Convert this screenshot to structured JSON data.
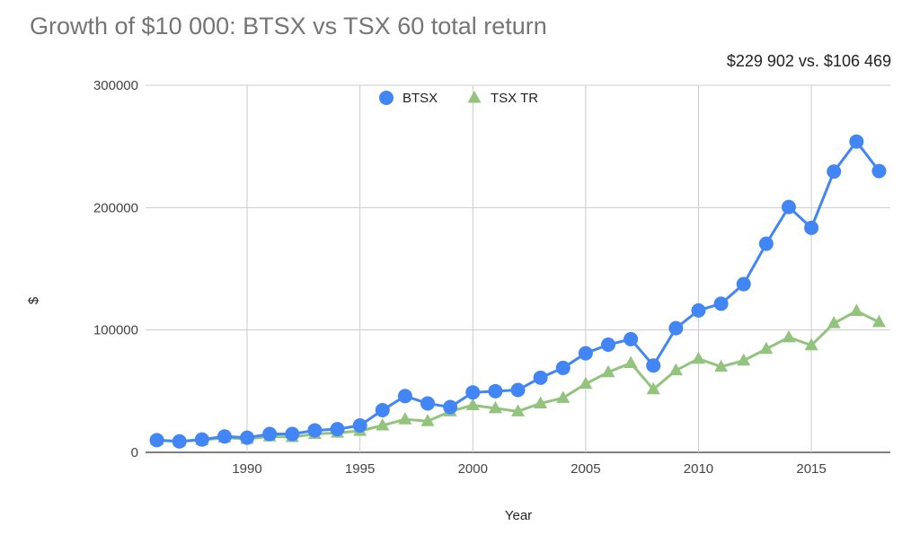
{
  "chart_data": {
    "type": "line",
    "title": "Growth of $10 000: BTSX vs TSX 60 total return",
    "subtitle": "$229 902 vs. $106 469",
    "xlabel": "Year",
    "ylabel": "$",
    "xlim": [
      1986,
      2018
    ],
    "ylim": [
      0,
      300000
    ],
    "x_ticks": [
      "1990",
      "1995",
      "2000",
      "2005",
      "2010",
      "2015"
    ],
    "x_tick_values": [
      1990,
      1995,
      2000,
      2005,
      2010,
      2015
    ],
    "y_ticks": [
      "0",
      "100000",
      "200000",
      "300000"
    ],
    "y_tick_values": [
      0,
      100000,
      200000,
      300000
    ],
    "grid": true,
    "legend_position": "top-center",
    "x": [
      1986,
      1987,
      1988,
      1989,
      1990,
      1991,
      1992,
      1993,
      1994,
      1995,
      1996,
      1997,
      1998,
      1999,
      2000,
      2001,
      2002,
      2003,
      2004,
      2005,
      2006,
      2007,
      2008,
      2009,
      2010,
      2011,
      2012,
      2013,
      2014,
      2015,
      2016,
      2017,
      2018
    ],
    "series": [
      {
        "name": "BTSX",
        "color": "#4285f4",
        "marker": "circle",
        "values": [
          10000,
          9000,
          10500,
          13000,
          12000,
          15000,
          15000,
          18000,
          19000,
          22000,
          34500,
          46000,
          40000,
          37000,
          49000,
          50000,
          51000,
          61000,
          69000,
          81000,
          88000,
          92500,
          71000,
          101500,
          116000,
          121500,
          137500,
          170500,
          200500,
          183500,
          229500,
          254000,
          229902
        ]
      },
      {
        "name": "TSX TR",
        "color": "#93c47d",
        "marker": "triangle",
        "values": [
          10000,
          9000,
          10000,
          12000,
          11000,
          13000,
          12500,
          15000,
          16000,
          17500,
          22000,
          27000,
          25500,
          33500,
          38500,
          36000,
          33500,
          40000,
          44500,
          56000,
          65500,
          73000,
          51500,
          67000,
          76500,
          70000,
          75000,
          84500,
          94000,
          87500,
          105500,
          115500,
          106469
        ]
      }
    ]
  }
}
